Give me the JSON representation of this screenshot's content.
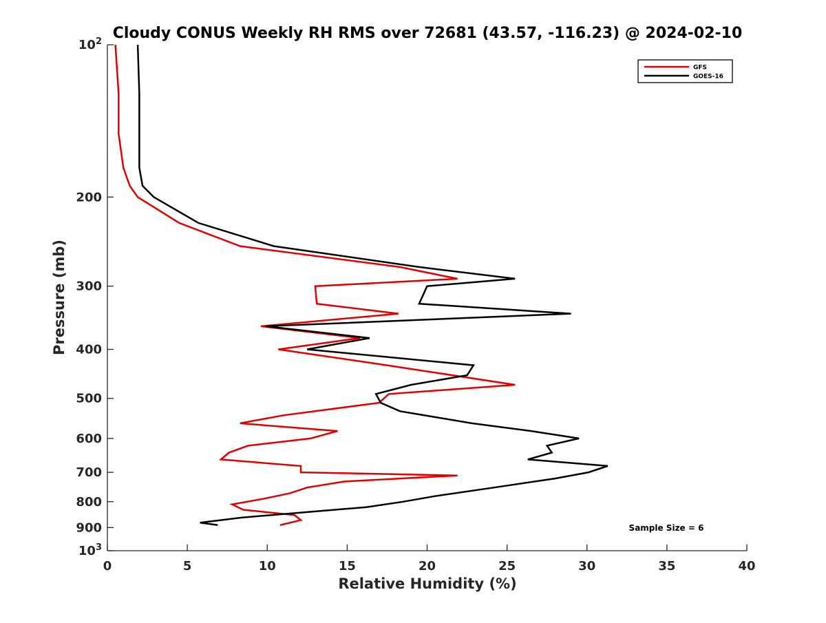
{
  "chart_data": {
    "type": "line",
    "title": "Cloudy CONUS Weekly RH RMS over 72681 (43.57, -116.23) @ 2024-02-10",
    "xlabel": "Relative Humidity (%)",
    "ylabel": "Pressure (mb)",
    "xlim": [
      0,
      40
    ],
    "ylim": [
      100,
      1000
    ],
    "y_scale": "log",
    "y_reversed": true,
    "grid": false,
    "legend_position": "top-right",
    "x_ticks": [
      "0",
      "5",
      "10",
      "15",
      "20",
      "25",
      "30",
      "35",
      "40"
    ],
    "y_ticks": [
      {
        "value": 100,
        "base": "10",
        "exp": "2"
      },
      {
        "value": 200,
        "label": "200"
      },
      {
        "value": 300,
        "label": "300"
      },
      {
        "value": 400,
        "label": "400"
      },
      {
        "value": 500,
        "label": "500"
      },
      {
        "value": 600,
        "label": "600"
      },
      {
        "value": 700,
        "label": "700"
      },
      {
        "value": 800,
        "label": "800"
      },
      {
        "value": 900,
        "label": "900"
      },
      {
        "value": 1000,
        "base": "10",
        "exp": "3"
      }
    ],
    "annotation": "Sample Size = 6",
    "series": [
      {
        "name": "GFS",
        "color": "#e00000",
        "points": [
          {
            "p": 100,
            "rh": 0.5
          },
          {
            "p": 125,
            "rh": 0.7
          },
          {
            "p": 150,
            "rh": 0.7
          },
          {
            "p": 175,
            "rh": 1.0
          },
          {
            "p": 190,
            "rh": 1.4
          },
          {
            "p": 200,
            "rh": 1.9
          },
          {
            "p": 225,
            "rh": 4.5
          },
          {
            "p": 250,
            "rh": 8.3
          },
          {
            "p": 275,
            "rh": 18.3
          },
          {
            "p": 290,
            "rh": 21.9
          },
          {
            "p": 300,
            "rh": 13.0
          },
          {
            "p": 325,
            "rh": 13.1
          },
          {
            "p": 340,
            "rh": 18.2
          },
          {
            "p": 360,
            "rh": 9.6
          },
          {
            "p": 380,
            "rh": 15.8
          },
          {
            "p": 400,
            "rh": 10.7
          },
          {
            "p": 430,
            "rh": 17.5
          },
          {
            "p": 470,
            "rh": 25.5
          },
          {
            "p": 490,
            "rh": 17.6
          },
          {
            "p": 510,
            "rh": 17.0
          },
          {
            "p": 540,
            "rh": 11.0
          },
          {
            "p": 560,
            "rh": 8.3
          },
          {
            "p": 580,
            "rh": 14.4
          },
          {
            "p": 600,
            "rh": 12.7
          },
          {
            "p": 620,
            "rh": 8.8
          },
          {
            "p": 640,
            "rh": 7.6
          },
          {
            "p": 660,
            "rh": 7.1
          },
          {
            "p": 680,
            "rh": 12.1
          },
          {
            "p": 700,
            "rh": 12.1
          },
          {
            "p": 710,
            "rh": 21.9
          },
          {
            "p": 730,
            "rh": 14.8
          },
          {
            "p": 750,
            "rh": 12.5
          },
          {
            "p": 770,
            "rh": 11.4
          },
          {
            "p": 790,
            "rh": 9.7
          },
          {
            "p": 810,
            "rh": 7.8
          },
          {
            "p": 830,
            "rh": 8.5
          },
          {
            "p": 850,
            "rh": 11.7
          },
          {
            "p": 870,
            "rh": 12.1
          },
          {
            "p": 890,
            "rh": 10.8
          }
        ]
      },
      {
        "name": "GOES-16",
        "color": "#000000",
        "points": [
          {
            "p": 100,
            "rh": 1.9
          },
          {
            "p": 125,
            "rh": 2.0
          },
          {
            "p": 150,
            "rh": 2.0
          },
          {
            "p": 175,
            "rh": 2.0
          },
          {
            "p": 190,
            "rh": 2.2
          },
          {
            "p": 200,
            "rh": 2.9
          },
          {
            "p": 225,
            "rh": 5.7
          },
          {
            "p": 250,
            "rh": 10.4
          },
          {
            "p": 275,
            "rh": 19.5
          },
          {
            "p": 290,
            "rh": 25.5
          },
          {
            "p": 300,
            "rh": 20.0
          },
          {
            "p": 325,
            "rh": 19.5
          },
          {
            "p": 340,
            "rh": 29.0
          },
          {
            "p": 360,
            "rh": 9.9
          },
          {
            "p": 380,
            "rh": 16.4
          },
          {
            "p": 400,
            "rh": 12.5
          },
          {
            "p": 430,
            "rh": 22.9
          },
          {
            "p": 450,
            "rh": 22.5
          },
          {
            "p": 470,
            "rh": 19.0
          },
          {
            "p": 490,
            "rh": 16.8
          },
          {
            "p": 510,
            "rh": 17.1
          },
          {
            "p": 530,
            "rh": 18.3
          },
          {
            "p": 560,
            "rh": 22.8
          },
          {
            "p": 580,
            "rh": 26.5
          },
          {
            "p": 600,
            "rh": 29.5
          },
          {
            "p": 620,
            "rh": 27.5
          },
          {
            "p": 640,
            "rh": 27.8
          },
          {
            "p": 660,
            "rh": 26.3
          },
          {
            "p": 680,
            "rh": 31.3
          },
          {
            "p": 700,
            "rh": 30.1
          },
          {
            "p": 720,
            "rh": 28.0
          },
          {
            "p": 750,
            "rh": 24.2
          },
          {
            "p": 780,
            "rh": 20.5
          },
          {
            "p": 800,
            "rh": 18.5
          },
          {
            "p": 820,
            "rh": 16.2
          },
          {
            "p": 840,
            "rh": 12.3
          },
          {
            "p": 860,
            "rh": 8.4
          },
          {
            "p": 880,
            "rh": 5.8
          },
          {
            "p": 890,
            "rh": 6.9
          }
        ]
      }
    ]
  }
}
